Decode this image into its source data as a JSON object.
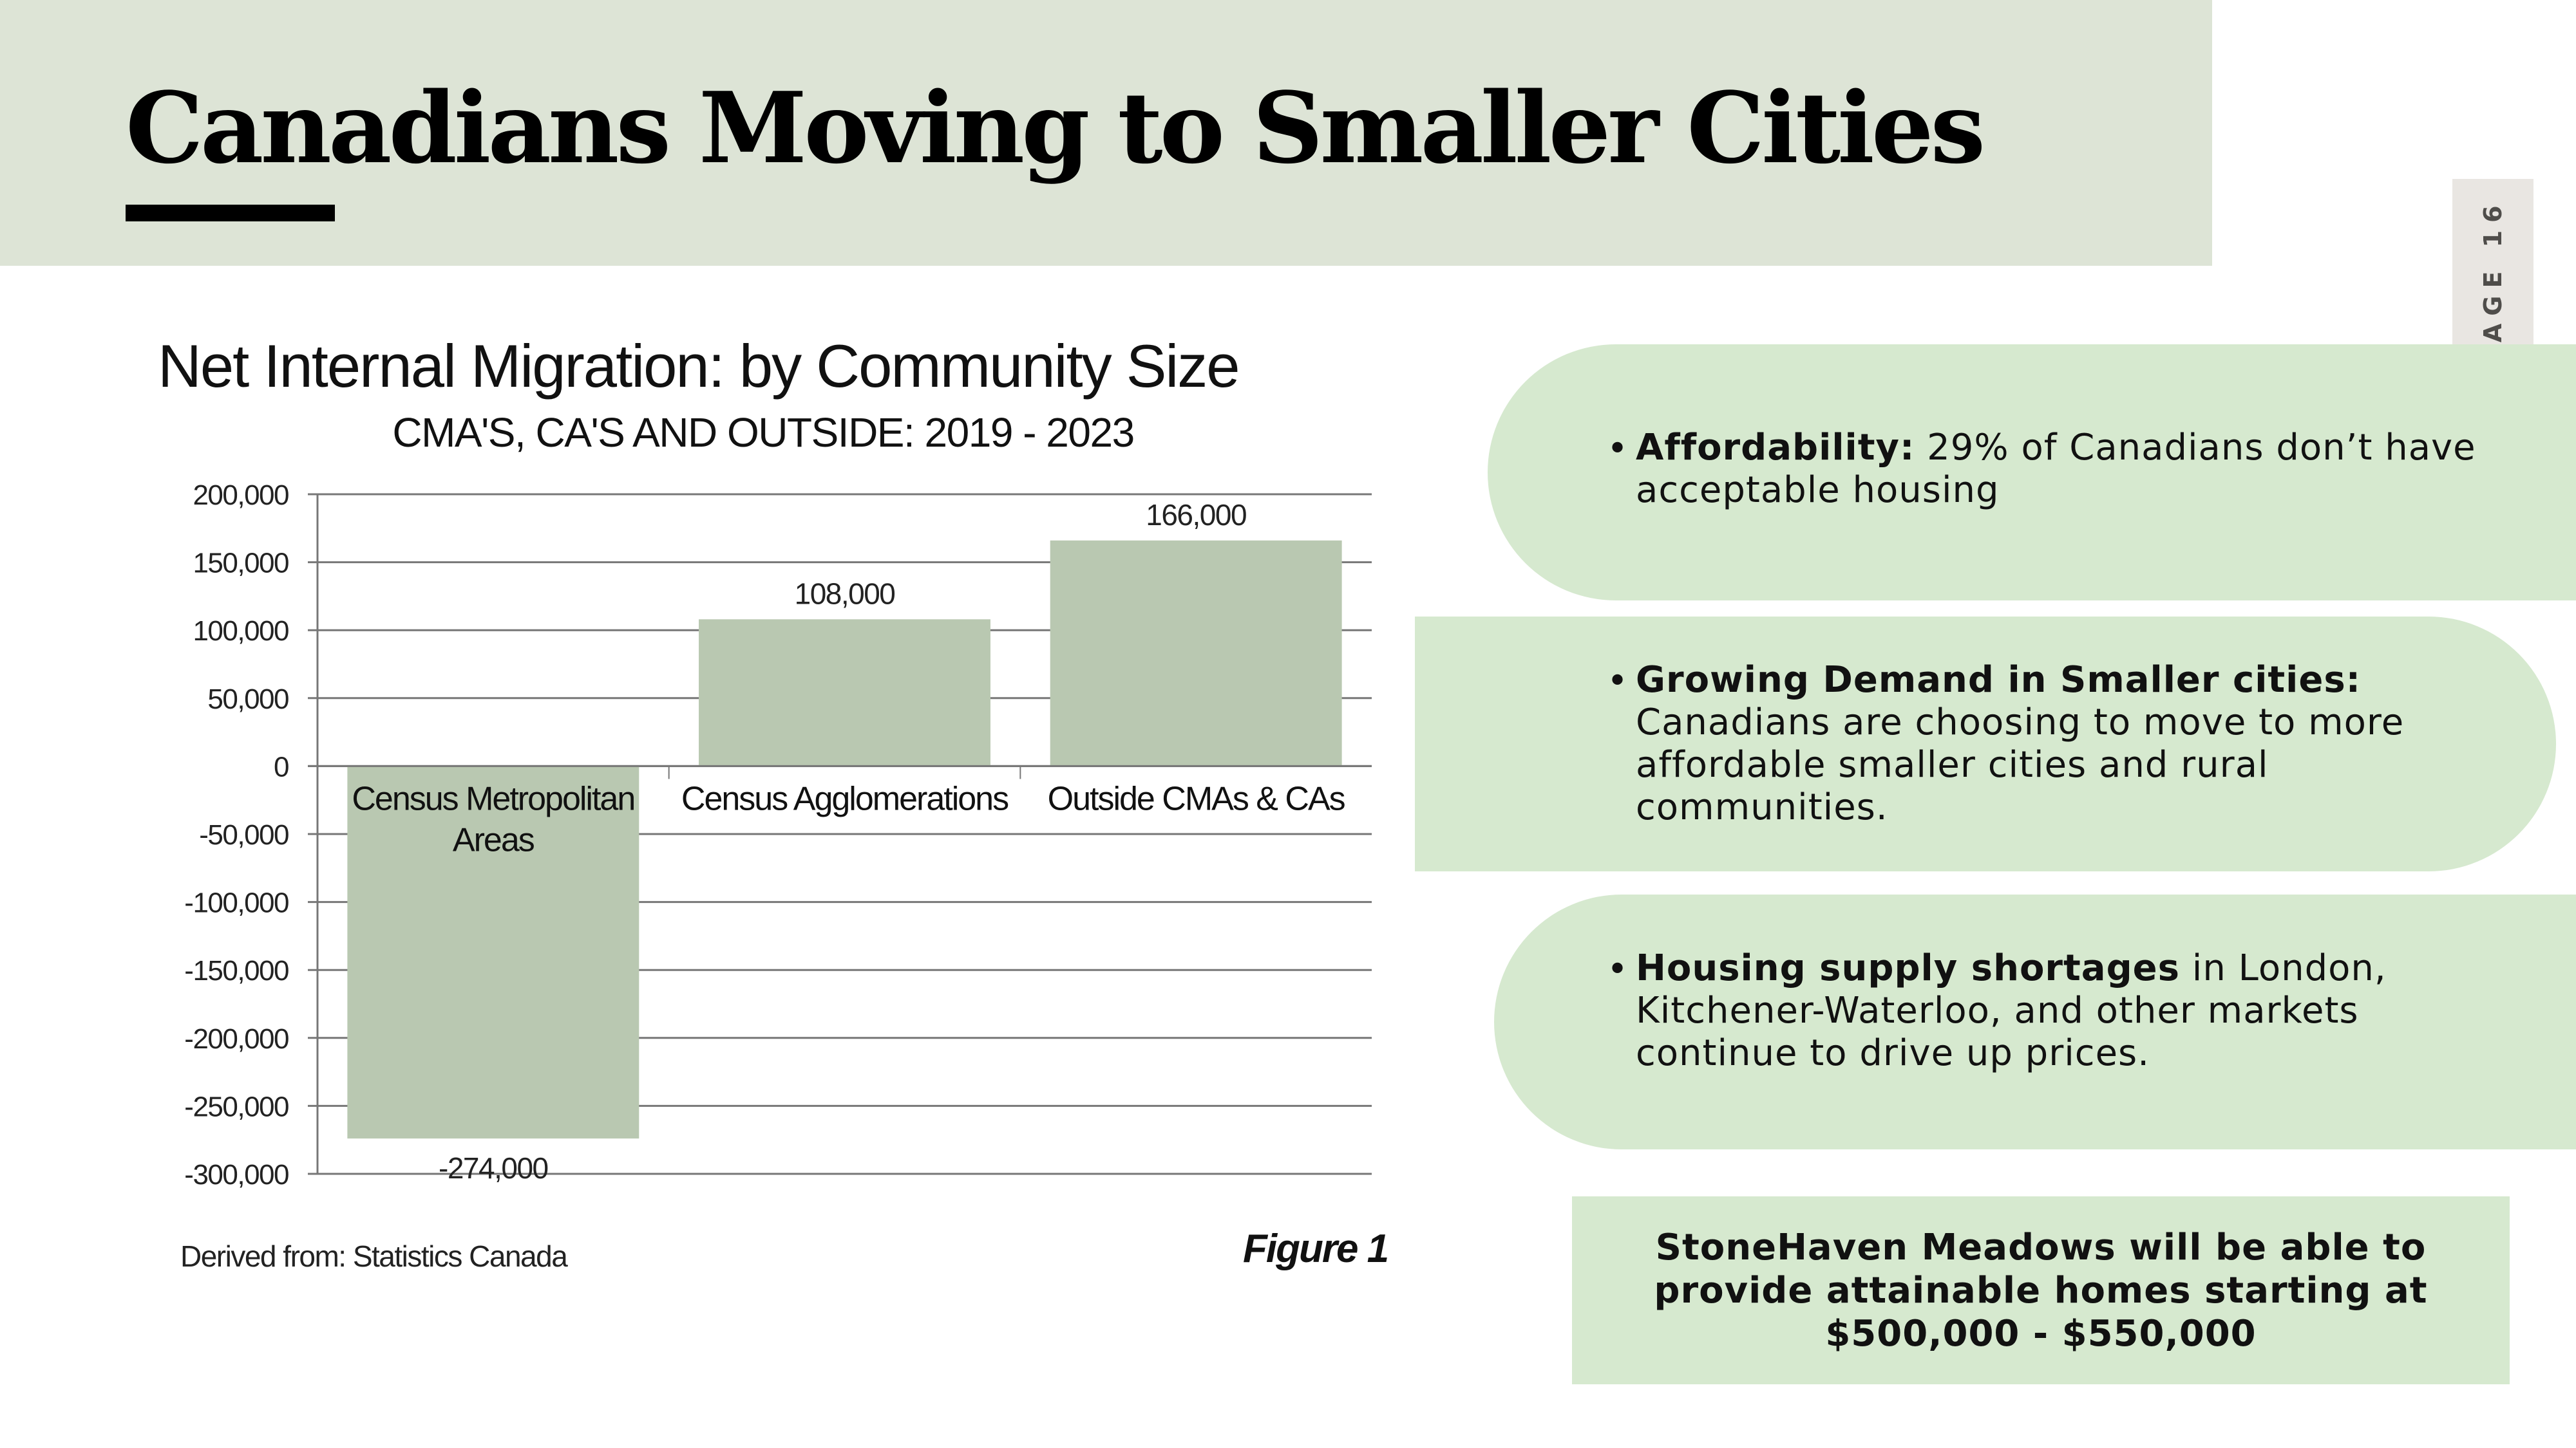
{
  "header": {
    "title": "Canadians Moving to Smaller Cities",
    "page_indicator": "PAGE 16"
  },
  "colors": {
    "header_band": "#dde4d6",
    "panel_fill": "#d6e9cf",
    "bar_fill": "#b9c8b1",
    "gridline": "#777777",
    "page_tab": "#e9e6e2"
  },
  "figure": {
    "source": "Derived from: Statistics Canada",
    "label": "Figure 1"
  },
  "chart_data": {
    "type": "bar",
    "title": "Net Internal Migration: by Community Size",
    "subtitle": "CMA'S, CA'S AND OUTSIDE: 2019 - 2023",
    "xlabel": "",
    "ylabel": "",
    "categories": [
      "Census Metropolitan Areas",
      "Census Agglomerations",
      "Outside CMAs & CAs"
    ],
    "category_label_lines": [
      [
        "Census Metropolitan",
        "Areas"
      ],
      [
        "Census Agglomerations"
      ],
      [
        "Outside CMAs & CAs"
      ]
    ],
    "values": [
      -274000,
      108000,
      166000
    ],
    "data_labels": [
      "-274,000",
      "108,000",
      "166,000"
    ],
    "ylim": [
      -300000,
      200000
    ],
    "yticks": [
      200000,
      150000,
      100000,
      50000,
      0,
      -50000,
      -100000,
      -150000,
      -200000,
      -250000,
      -300000
    ],
    "ytick_labels": [
      "200,000",
      "150,000",
      "100,000",
      "50,000",
      "0",
      "-50,000",
      "-100,000",
      "-150,000",
      "-200,000",
      "-250,000",
      "-300,000"
    ],
    "grid": true,
    "legend": "none"
  },
  "bullets": [
    {
      "bold": "Affordability:",
      "text": " 29% of Canadians don’t have acceptable housing"
    },
    {
      "bold": "Growing Demand in Smaller cities:",
      "text": " Canadians are choosing to move to more affordable smaller cities and rural communities."
    },
    {
      "bold": "Housing supply shortages",
      "text": " in London, Kitchener-Waterloo, and other markets continue to drive up prices."
    }
  ],
  "callout": {
    "text": "StoneHaven Meadows will be able to provide attainable homes starting at $500,000 - $550,000"
  }
}
